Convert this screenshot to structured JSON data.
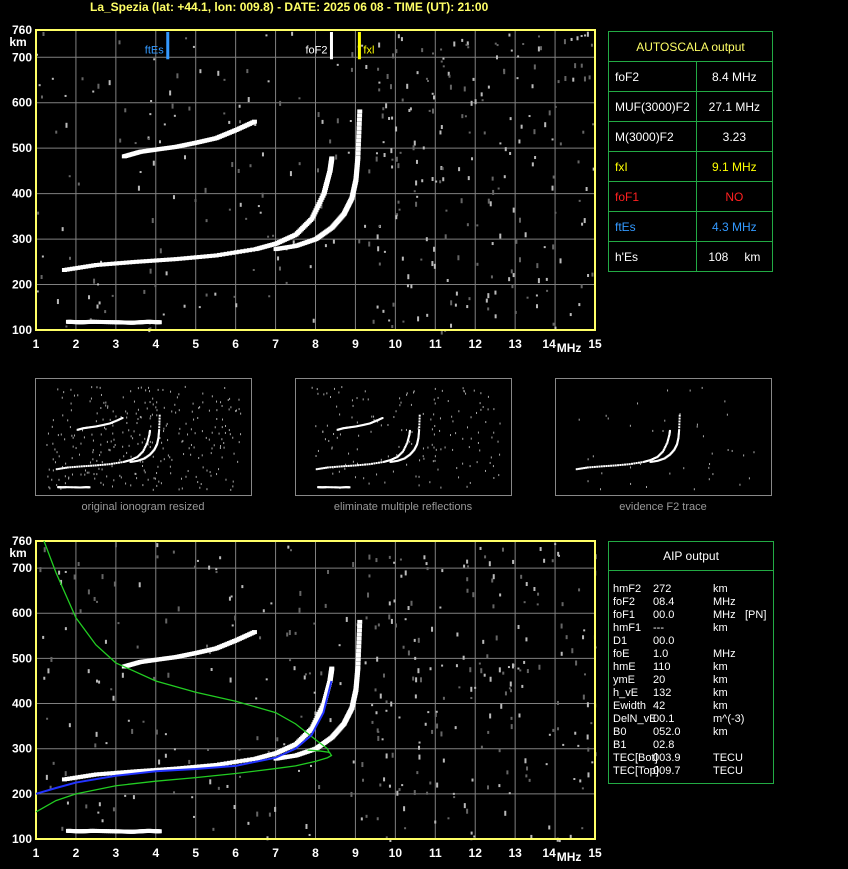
{
  "header": {
    "title": "La_Spezia (lat: +44.1, lon: 009.8) - DATE: 2025 06 08 - TIME (UT): 21:00"
  },
  "autoscala": {
    "title": "AUTOSCALA output",
    "rows": [
      {
        "label": "foF2",
        "value": "8.4 MHz",
        "color": "#ffffff"
      },
      {
        "label": "MUF(3000)F2",
        "value": "27.1 MHz",
        "color": "#ffffff"
      },
      {
        "label": "M(3000)F2",
        "value": "3.23",
        "color": "#ffffff"
      },
      {
        "label": "fxI",
        "value": "9.1 MHz",
        "color": "#ffff00"
      },
      {
        "label": "foF1",
        "value": "NO",
        "color": "#ff2020"
      },
      {
        "label": "ftEs",
        "value": "4.3 MHz",
        "color": "#3399ff"
      },
      {
        "label": "h'Es",
        "value": "108",
        "unit": "km",
        "color": "#ffffff"
      }
    ]
  },
  "aip": {
    "title": "AIP output",
    "rows": [
      {
        "label": "hmF2",
        "value": "272",
        "unit": "km",
        "extra": ""
      },
      {
        "label": "foF2",
        "value": "08.4",
        "unit": "MHz",
        "extra": ""
      },
      {
        "label": "foF1",
        "value": "00.0",
        "unit": "MHz",
        "extra": "[PN]"
      },
      {
        "label": "hmF1",
        "value": "---",
        "unit": "km",
        "extra": ""
      },
      {
        "label": "D1",
        "value": "00.0",
        "unit": "",
        "extra": ""
      },
      {
        "label": "foE",
        "value": "1.0",
        "unit": "MHz",
        "extra": ""
      },
      {
        "label": "hmE",
        "value": "110",
        "unit": "km",
        "extra": ""
      },
      {
        "label": "ymE",
        "value": "20",
        "unit": "km",
        "extra": ""
      },
      {
        "label": "h_vE",
        "value": "132",
        "unit": "km",
        "extra": ""
      },
      {
        "label": "Ewidth",
        "value": "42",
        "unit": "km",
        "extra": ""
      },
      {
        "label": "DelN_vE",
        "value": "00.1",
        "unit": "m^(-3)",
        "extra": ""
      },
      {
        "label": "B0",
        "value": "052.0",
        "unit": "km",
        "extra": ""
      },
      {
        "label": "B1",
        "value": "02.8",
        "unit": "",
        "extra": ""
      },
      {
        "label": "TEC[Bot]",
        "value": "003.9",
        "unit": "TECU",
        "extra": ""
      },
      {
        "label": "TEC[Top]",
        "value": "009.7",
        "unit": "TECU",
        "extra": ""
      }
    ]
  },
  "thumbnails": [
    {
      "caption": "original ionogram resized"
    },
    {
      "caption": "eliminate multiple reflections"
    },
    {
      "caption": "evidence F2 trace"
    }
  ],
  "colors": {
    "axis": "#ffff66",
    "grid": "#808080",
    "trace": "#ffffff",
    "fit_green": "#22cc22",
    "fit_blue": "#2233ff",
    "marker_es": "#3399ff",
    "marker_fx": "#ffff00"
  },
  "chart_data": [
    {
      "type": "scatter",
      "title": "",
      "xlabel": "MHz",
      "ylabel": "km",
      "xlim": [
        1,
        15
      ],
      "ylim": [
        100,
        760
      ],
      "x_ticks": [
        1,
        2,
        3,
        4,
        5,
        6,
        7,
        8,
        9,
        10,
        11,
        12,
        13,
        14,
        15
      ],
      "y_ticks": [
        100,
        200,
        300,
        400,
        500,
        600,
        700,
        760
      ],
      "markers": [
        {
          "name": "ftEs",
          "x": 4.3,
          "color": "#3399ff"
        },
        {
          "name": "foF2",
          "x": 8.4,
          "color": "#ffffff"
        },
        {
          "name": "fxl",
          "x": 9.1,
          "color": "#ffff00"
        }
      ],
      "series": [
        {
          "x": [
            1.7,
            2.5,
            3.5,
            4.5,
            5.5,
            6.5,
            7.0,
            7.5,
            7.9,
            8.2,
            8.35,
            8.4
          ],
          "y": [
            232,
            243,
            250,
            256,
            264,
            278,
            290,
            310,
            345,
            400,
            450,
            480
          ]
        },
        {
          "x": [
            7.0,
            7.5,
            8.0,
            8.4,
            8.7,
            8.9,
            9.0,
            9.05,
            9.1
          ],
          "y": [
            278,
            285,
            300,
            325,
            355,
            390,
            430,
            480,
            590
          ]
        },
        {
          "x": [
            3.2,
            3.6,
            4.0,
            4.5,
            5.0,
            5.5,
            6.0,
            6.5
          ],
          "y": [
            482,
            492,
            497,
            503,
            512,
            522,
            540,
            560
          ]
        },
        {
          "x": [
            1.8,
            2.1,
            2.4,
            3.0,
            3.4,
            3.8,
            4.1
          ],
          "y": [
            118,
            117,
            118,
            117,
            116,
            118,
            117
          ]
        }
      ]
    },
    {
      "type": "line",
      "title": "",
      "xlabel": "MHz",
      "ylabel": "km",
      "xlim": [
        1,
        15
      ],
      "ylim": [
        100,
        760
      ],
      "x_ticks": [
        1,
        2,
        3,
        4,
        5,
        6,
        7,
        8,
        9,
        10,
        11,
        12,
        13,
        14,
        15
      ],
      "y_ticks": [
        100,
        200,
        300,
        400,
        500,
        600,
        700,
        760
      ],
      "series": [
        {
          "x": [
            1.2,
            1.5,
            2.0,
            2.5,
            3.0,
            4.0,
            5.0,
            6.0,
            7.0,
            7.5,
            8.0,
            8.3,
            8.35
          ],
          "y": [
            760,
            690,
            590,
            530,
            490,
            450,
            425,
            405,
            380,
            355,
            320,
            300,
            290
          ]
        },
        {
          "x": [
            1.0,
            1.5,
            2.0,
            3.0,
            4.0,
            5.0,
            6.0,
            7.0,
            7.5,
            8.0,
            8.3,
            8.4,
            8.35,
            8.1,
            7.8
          ],
          "y": [
            160,
            185,
            200,
            218,
            228,
            236,
            245,
            256,
            262,
            272,
            280,
            285,
            292,
            295,
            297
          ]
        },
        {
          "x": [
            1.0,
            1.5,
            2.0,
            3.0,
            4.0,
            5.0,
            6.0,
            7.0,
            7.5,
            7.9,
            8.2,
            8.4
          ],
          "y": [
            200,
            213,
            225,
            240,
            250,
            255,
            262,
            280,
            300,
            330,
            380,
            450
          ]
        }
      ]
    }
  ]
}
